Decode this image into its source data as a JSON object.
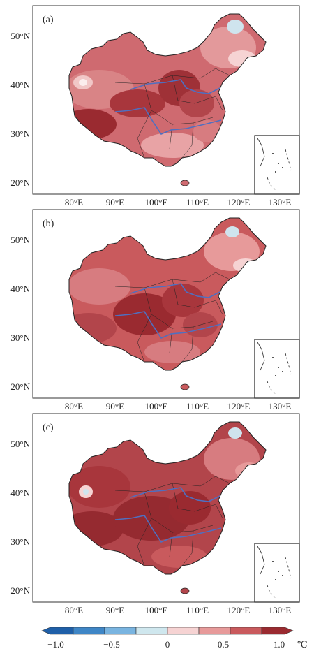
{
  "panels": [
    {
      "label": "(a)"
    },
    {
      "label": "(b)"
    },
    {
      "label": "(c)"
    }
  ],
  "lat_ticks": [
    "50°N",
    "40°N",
    "30°N",
    "20°N"
  ],
  "lon_ticks": [
    "80°E",
    "90°E",
    "100°E",
    "110°E",
    "120°E",
    "130°E"
  ],
  "colorbar": {
    "tick_labels": [
      "−1.0",
      "−0.5",
      "0",
      "0.5",
      "1.0"
    ],
    "unit": "℃",
    "colors": [
      "#1f5fa8",
      "#3f86c6",
      "#79b4e0",
      "#cfe7ee",
      "#f6d3d3",
      "#e79a9a",
      "#c95a5d",
      "#9a2a30"
    ]
  },
  "colors": {
    "land_base": "#cf6a70",
    "land_warm": "#b2454b",
    "land_hot": "#952a30",
    "land_light": "#e8a3a5",
    "cool_spot": "#cfe4ee",
    "river": "#4f6fc0",
    "border": "#222222"
  }
}
